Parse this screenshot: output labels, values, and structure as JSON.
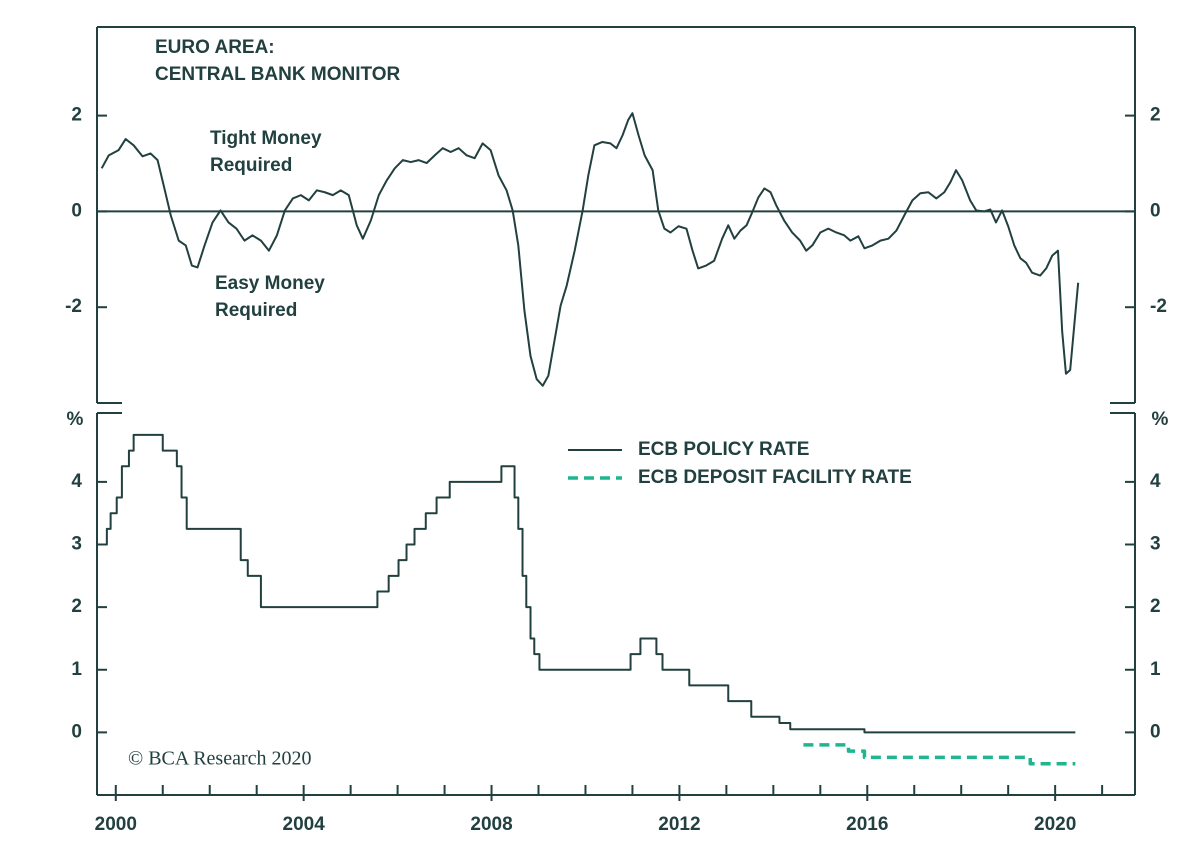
{
  "chart_data": [
    {
      "type": "line",
      "title": [
        "EURO AREA:",
        "CENTRAL BANK MONITOR"
      ],
      "annotations": [
        [
          "Tight Money",
          "Required"
        ],
        [
          "Easy Money",
          "Required"
        ]
      ],
      "color": "#21403f",
      "xlim": [
        1999.6,
        2021.7
      ],
      "ylim": [
        -4,
        3.85
      ],
      "yticks": [
        -2,
        0,
        2
      ],
      "hline": 0,
      "x": [
        1999.7,
        1999.85,
        2000.06,
        2000.21,
        2000.38,
        2000.57,
        2000.74,
        2000.89,
        2001.02,
        2001.17,
        2001.34,
        2001.49,
        2001.62,
        2001.74,
        2001.89,
        2002.06,
        2002.23,
        2002.4,
        2002.57,
        2002.74,
        2002.91,
        2003.09,
        2003.26,
        2003.43,
        2003.6,
        2003.77,
        2003.94,
        2004.11,
        2004.28,
        2004.45,
        2004.62,
        2004.79,
        2004.96,
        2005.13,
        2005.26,
        2005.43,
        2005.6,
        2005.77,
        2005.94,
        2006.11,
        2006.28,
        2006.45,
        2006.62,
        2006.79,
        2006.96,
        2007.13,
        2007.3,
        2007.47,
        2007.64,
        2007.81,
        2007.98,
        2008.15,
        2008.32,
        2008.45,
        2008.57,
        2008.7,
        2008.83,
        2008.96,
        2009.09,
        2009.21,
        2009.34,
        2009.47,
        2009.6,
        2009.77,
        2009.94,
        2010.06,
        2010.19,
        2010.36,
        2010.53,
        2010.66,
        2010.79,
        2010.91,
        2011.0,
        2011.13,
        2011.26,
        2011.43,
        2011.55,
        2011.68,
        2011.81,
        2011.98,
        2012.15,
        2012.28,
        2012.4,
        2012.57,
        2012.74,
        2012.91,
        2013.04,
        2013.17,
        2013.3,
        2013.43,
        2013.55,
        2013.68,
        2013.81,
        2013.94,
        2014.06,
        2014.23,
        2014.4,
        2014.57,
        2014.7,
        2014.83,
        2015.0,
        2015.17,
        2015.34,
        2015.51,
        2015.64,
        2015.81,
        2015.94,
        2016.11,
        2016.28,
        2016.45,
        2016.62,
        2016.79,
        2016.96,
        2017.13,
        2017.3,
        2017.47,
        2017.64,
        2017.77,
        2017.89,
        2018.02,
        2018.19,
        2018.32,
        2018.49,
        2018.62,
        2018.74,
        2018.87,
        2019.0,
        2019.13,
        2019.26,
        2019.38,
        2019.51,
        2019.68,
        2019.81,
        2019.94,
        2020.06,
        2020.15,
        2020.23,
        2020.32,
        2020.49
      ],
      "values": [
        0.9,
        1.17,
        1.28,
        1.51,
        1.38,
        1.15,
        1.21,
        1.07,
        0.54,
        -0.08,
        -0.61,
        -0.71,
        -1.13,
        -1.17,
        -0.71,
        -0.23,
        0.02,
        -0.23,
        -0.36,
        -0.61,
        -0.5,
        -0.61,
        -0.82,
        -0.5,
        0.02,
        0.27,
        0.34,
        0.23,
        0.44,
        0.4,
        0.34,
        0.44,
        0.34,
        -0.29,
        -0.57,
        -0.19,
        0.34,
        0.65,
        0.9,
        1.07,
        1.03,
        1.07,
        1.01,
        1.17,
        1.32,
        1.24,
        1.32,
        1.17,
        1.11,
        1.42,
        1.28,
        0.75,
        0.44,
        0.02,
        -0.71,
        -2.07,
        -3.02,
        -3.5,
        -3.64,
        -3.43,
        -2.7,
        -1.97,
        -1.55,
        -0.82,
        0.02,
        0.75,
        1.38,
        1.45,
        1.42,
        1.32,
        1.59,
        1.91,
        2.05,
        1.59,
        1.17,
        0.86,
        0.02,
        -0.36,
        -0.44,
        -0.31,
        -0.36,
        -0.82,
        -1.19,
        -1.13,
        -1.03,
        -0.57,
        -0.29,
        -0.57,
        -0.4,
        -0.29,
        -0.02,
        0.29,
        0.48,
        0.4,
        0.13,
        -0.19,
        -0.44,
        -0.61,
        -0.82,
        -0.71,
        -0.44,
        -0.36,
        -0.44,
        -0.5,
        -0.61,
        -0.52,
        -0.77,
        -0.71,
        -0.61,
        -0.57,
        -0.4,
        -0.08,
        0.23,
        0.38,
        0.4,
        0.27,
        0.4,
        0.61,
        0.86,
        0.65,
        0.23,
        0.02,
        0,
        0.04,
        -0.23,
        0.02,
        -0.31,
        -0.71,
        -0.98,
        -1.07,
        -1.28,
        -1.34,
        -1.19,
        -0.92,
        -0.82,
        -2.51,
        -3.39,
        -3.31,
        -1.49
      ]
    },
    {
      "type": "line",
      "step": true,
      "y_label": "%",
      "source": "© BCA Research 2020",
      "legend": "top-center",
      "xlim": [
        1999.6,
        2021.7
      ],
      "ylim": [
        -1,
        5.1
      ],
      "yticks": [
        0,
        1,
        2,
        3,
        4
      ],
      "xticks": [
        2000,
        2004,
        2008,
        2012,
        2016,
        2020
      ],
      "xminor_ticks": [
        2000,
        2001,
        2002,
        2003,
        2004,
        2005,
        2006,
        2007,
        2008,
        2009,
        2010,
        2011,
        2012,
        2013,
        2014,
        2015,
        2016,
        2017,
        2018,
        2019,
        2020,
        2021
      ],
      "series": [
        {
          "name": "ECB POLICY RATE",
          "color": "#21403f",
          "style": "solid",
          "x": [
            1999.7,
            1999.81,
            1999.89,
            2000.02,
            2000.13,
            2000.28,
            2000.38,
            2001.0,
            2001.3,
            2001.4,
            2001.51,
            2002.66,
            2002.81,
            2003.09,
            2005.57,
            2005.81,
            2006.02,
            2006.19,
            2006.36,
            2006.6,
            2006.83,
            2007.11,
            2008.21,
            2008.49,
            2008.57,
            2008.66,
            2008.74,
            2008.83,
            2008.91,
            2009.02,
            2010.96,
            2011.17,
            2011.51,
            2011.64,
            2012.21,
            2013.04,
            2013.53,
            2014.13,
            2014.36,
            2015.94,
            2020.43
          ],
          "values": [
            3.0,
            3.25,
            3.5,
            3.75,
            4.25,
            4.5,
            4.75,
            4.5,
            4.25,
            3.75,
            3.25,
            2.75,
            2.5,
            2.0,
            2.25,
            2.5,
            2.75,
            3.0,
            3.25,
            3.5,
            3.75,
            4.0,
            4.25,
            3.75,
            3.25,
            2.5,
            2.0,
            1.5,
            1.25,
            1.0,
            1.25,
            1.5,
            1.25,
            1.0,
            0.75,
            0.5,
            0.25,
            0.15,
            0.05,
            0.0,
            0.0
          ]
        },
        {
          "name": "ECB DEPOSIT FACILITY RATE",
          "color": "#1fb58f",
          "style": "dashed",
          "x": [
            2014.64,
            2015.6,
            2015.94,
            2019.47,
            2020.43
          ],
          "values": [
            -0.2,
            -0.3,
            -0.4,
            -0.5,
            -0.5
          ]
        }
      ]
    }
  ]
}
